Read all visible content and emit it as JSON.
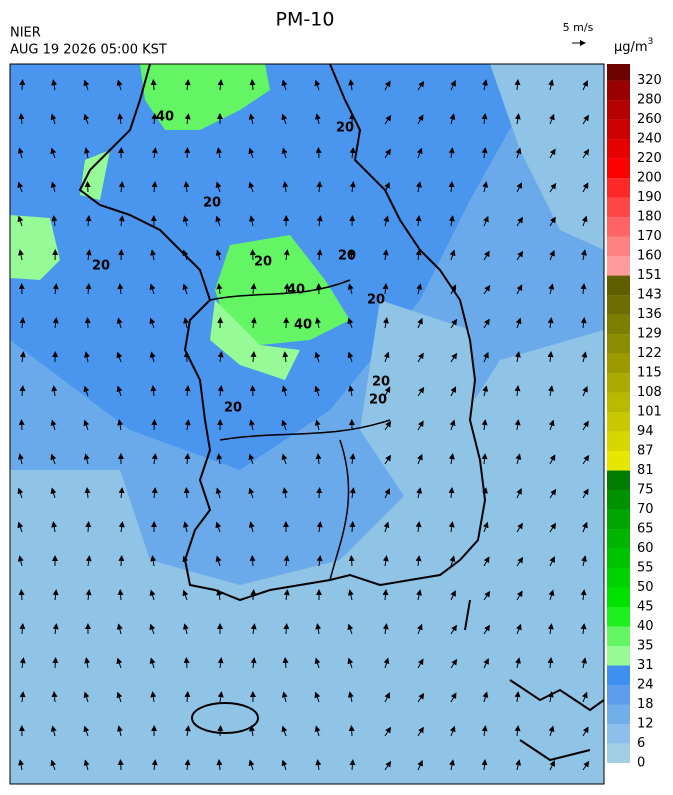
{
  "header": {
    "title": "PM-10",
    "agency": "NIER",
    "datetime": "AUG 19 2026 05:00 KST",
    "wind_scale": "5 m/s"
  },
  "legend": {
    "unit": "μg/m",
    "unit_exponent": "3",
    "levels": [
      0,
      6,
      12,
      18,
      24,
      31,
      35,
      40,
      45,
      50,
      55,
      60,
      65,
      70,
      75,
      81,
      87,
      94,
      101,
      108,
      115,
      122,
      129,
      136,
      143,
      151,
      160,
      170,
      180,
      190,
      200,
      220,
      240,
      260,
      280,
      320
    ],
    "colors": [
      "#a3cfe6",
      "#8cc0ea",
      "#72aeea",
      "#5b9eec",
      "#3f8ff0",
      "#96fa96",
      "#64f564",
      "#1ef01e",
      "#00e100",
      "#00d200",
      "#00c300",
      "#00b400",
      "#00a500",
      "#009100",
      "#007d00",
      "#e6e600",
      "#d7d700",
      "#c8c800",
      "#b9b900",
      "#aaaa00",
      "#9b9b00",
      "#8c8c00",
      "#7d7d00",
      "#6e6e00",
      "#5f5f00",
      "#ff9b9b",
      "#ff8282",
      "#ff6464",
      "#ff4646",
      "#ff2828",
      "#ff0000",
      "#e60000",
      "#cd0000",
      "#b40000",
      "#9b0000",
      "#6e0000"
    ]
  },
  "map": {
    "contour_labels": [
      "40",
      "20",
      "20",
      "20",
      "20",
      "40",
      "40",
      "20",
      "20",
      "20",
      "20",
      "20"
    ]
  }
}
